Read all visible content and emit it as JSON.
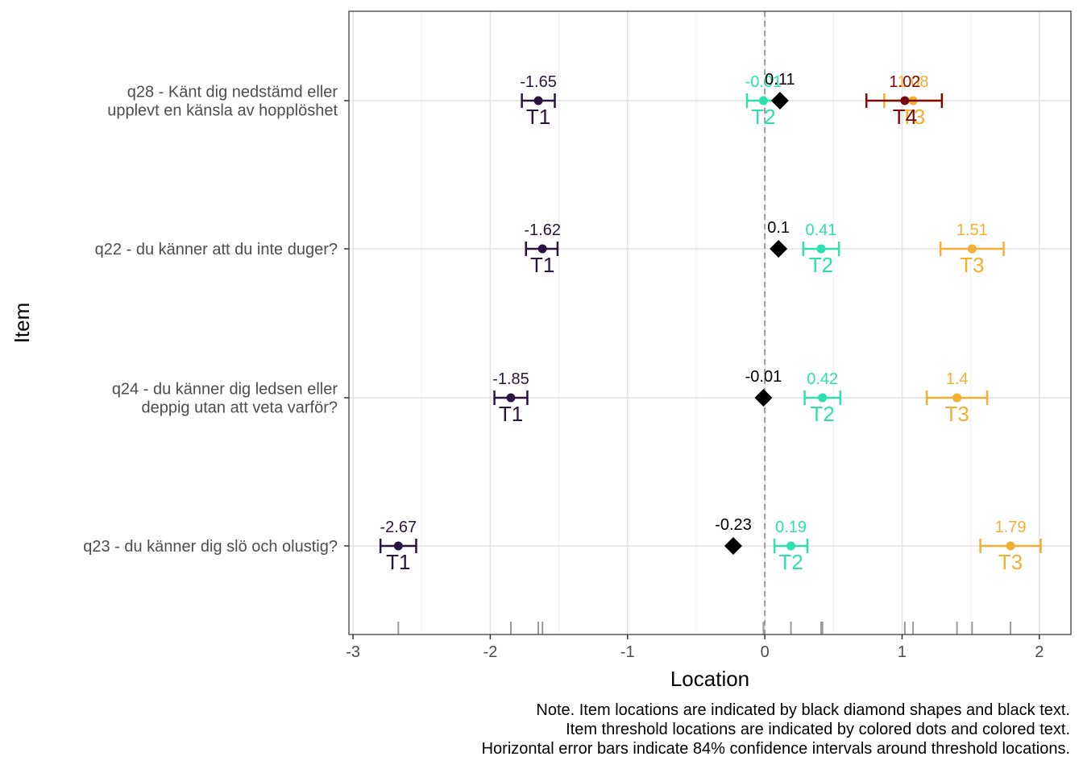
{
  "chart_data": {
    "type": "scatter",
    "xlabel": "Location",
    "ylabel": "Item",
    "xlim": [
      -3.03,
      2.23
    ],
    "x_ticks": [
      -3,
      -2,
      -1,
      0,
      1,
      2
    ],
    "x_tick_labels": [
      "-3",
      "-2",
      "-1",
      "0",
      "1",
      "2"
    ],
    "grid": true,
    "reference_line_x": 0,
    "threshold_colors": {
      "T1": "#2b1540",
      "T2": "#2ee0ad",
      "T3": "#f5ae32",
      "T4": "#7a0a0a"
    },
    "item_color": "#000000",
    "items": [
      {
        "label": "q28 - Känt dig nedstämd eller\nupplevt en känsla av hopplöshet",
        "location": 0.11,
        "location_label": "0.11",
        "thresholds": [
          {
            "name": "T1",
            "value": -1.65,
            "label": "-1.65",
            "ci": [
              -1.77,
              -1.53
            ]
          },
          {
            "name": "T2",
            "value": -0.01,
            "label": "-0.01",
            "ci": [
              -0.13,
              0.11
            ]
          },
          {
            "name": "T3",
            "value": 1.08,
            "label": "1.08",
            "ci": [
              0.87,
              1.29
            ]
          },
          {
            "name": "T4",
            "value": 1.02,
            "label": "1.02",
            "ci": [
              0.74,
              1.29
            ]
          }
        ]
      },
      {
        "label": "q22 - du känner att du inte duger?",
        "location": 0.1,
        "location_label": "0.1",
        "thresholds": [
          {
            "name": "T1",
            "value": -1.62,
            "label": "-1.62",
            "ci": [
              -1.74,
              -1.51
            ]
          },
          {
            "name": "T2",
            "value": 0.41,
            "label": "0.41",
            "ci": [
              0.28,
              0.54
            ]
          },
          {
            "name": "T3",
            "value": 1.51,
            "label": "1.51",
            "ci": [
              1.28,
              1.74
            ]
          }
        ]
      },
      {
        "label": "q24 - du känner dig ledsen eller\ndeppig utan att veta varför?",
        "location": -0.01,
        "location_label": "-0.01",
        "thresholds": [
          {
            "name": "T1",
            "value": -1.85,
            "label": "-1.85",
            "ci": [
              -1.97,
              -1.73
            ]
          },
          {
            "name": "T2",
            "value": 0.42,
            "label": "0.42",
            "ci": [
              0.29,
              0.55
            ]
          },
          {
            "name": "T3",
            "value": 1.4,
            "label": "1.4",
            "ci": [
              1.18,
              1.62
            ]
          }
        ]
      },
      {
        "label": "q23 - du känner dig slö och olustig?",
        "location": -0.23,
        "location_label": "-0.23",
        "thresholds": [
          {
            "name": "T1",
            "value": -2.67,
            "label": "-2.67",
            "ci": [
              -2.8,
              -2.54
            ]
          },
          {
            "name": "T2",
            "value": 0.19,
            "label": "0.19",
            "ci": [
              0.07,
              0.31
            ]
          },
          {
            "name": "T3",
            "value": 1.79,
            "label": "1.79",
            "ci": [
              1.57,
              2.01
            ]
          }
        ]
      }
    ]
  },
  "note": {
    "line1": "Note. Item locations are indicated by black diamond shapes and black text.",
    "line2": "Item threshold locations are indicated by colored dots and colored text.",
    "line3": "Horizontal error bars indicate 84% confidence intervals around threshold locations."
  }
}
